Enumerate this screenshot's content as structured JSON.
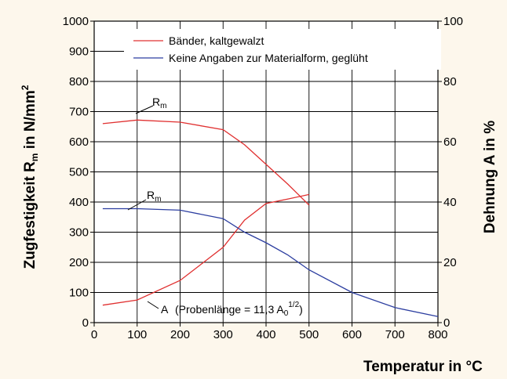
{
  "chart_data": {
    "type": "line",
    "xlabel": "Temperatur in °C",
    "ylabel_left": "Zugfestigkeit  R",
    "ylabel_left_sub": "m",
    "ylabel_left_unit": " in N/mm",
    "ylabel_left_sup": "2",
    "ylabel_right": "Dehnung  A  in %",
    "xlim": [
      0,
      800
    ],
    "ylim_left": [
      0,
      1000
    ],
    "ylim_right": [
      0,
      100
    ],
    "xticks": [
      "0",
      "100",
      "200",
      "300",
      "400",
      "500",
      "600",
      "700",
      "800"
    ],
    "yticks_left": [
      "0",
      "100",
      "200",
      "300",
      "400",
      "500",
      "600",
      "700",
      "800",
      "900",
      "1000"
    ],
    "yticks_right": [
      "0",
      "20",
      "40",
      "60",
      "80",
      "100"
    ],
    "grid": true,
    "legend_position": "top",
    "series": [
      {
        "name": "Bänder, kaltgewalzt",
        "color": "#e03030",
        "axis": "left",
        "label": "R",
        "label_sub": "m",
        "x": [
          20,
          100,
          200,
          300,
          350,
          400,
          450,
          500
        ],
        "y": [
          660,
          672,
          665,
          640,
          590,
          525,
          460,
          390
        ]
      },
      {
        "name": "",
        "color": "#e03030",
        "axis": "right",
        "label": "A",
        "x": [
          20,
          100,
          200,
          300,
          350,
          400,
          450,
          500
        ],
        "y": [
          5.8,
          7.5,
          14,
          25,
          34,
          39.5,
          41,
          42.5
        ]
      },
      {
        "name": "Keine Angaben zur Materialform, geglüht",
        "color": "#2c3ea0",
        "axis": "left",
        "label": "R",
        "label_sub": "m",
        "x": [
          20,
          100,
          200,
          300,
          350,
          400,
          450,
          500,
          600,
          700,
          800
        ],
        "y": [
          378,
          378,
          373,
          345,
          300,
          265,
          225,
          175,
          100,
          50,
          20
        ]
      }
    ],
    "annotation_A": {
      "prefix": "(Probenlänge = 11,3 A",
      "sub": "0",
      "sup": "1/2",
      "suffix": ")"
    }
  }
}
